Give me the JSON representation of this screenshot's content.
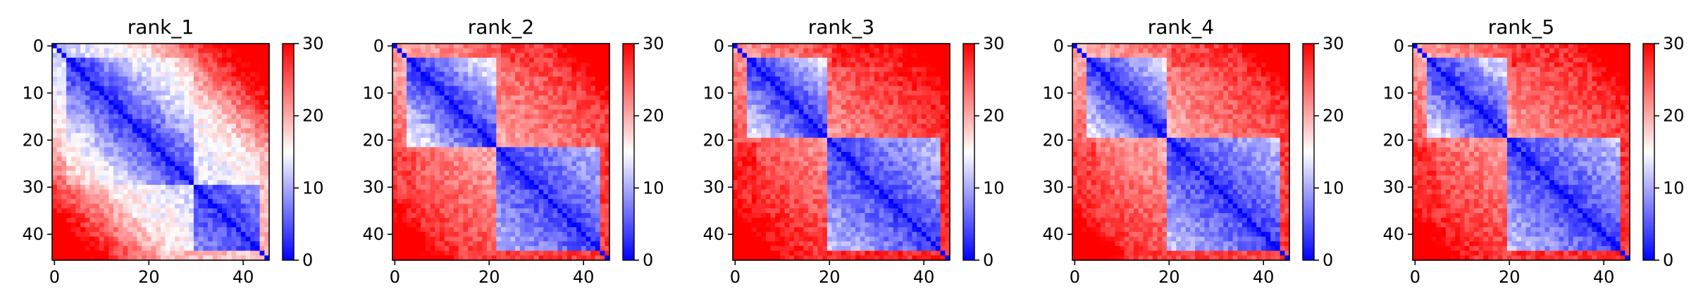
{
  "chart_data": [
    {
      "type": "heatmap",
      "title": "rank_1",
      "size": 46,
      "xticks": [
        0,
        20,
        40
      ],
      "yticks": [
        0,
        10,
        20,
        30,
        40
      ],
      "colorbar": {
        "min": 0,
        "max": 30,
        "ticks": [
          0,
          10,
          20,
          30
        ],
        "colors": [
          "#0000ff",
          "#ffffff",
          "#ff0000"
        ]
      },
      "domain_split": 30,
      "far_level": 0.55
    },
    {
      "type": "heatmap",
      "title": "rank_2",
      "size": 46,
      "xticks": [
        0,
        20,
        40
      ],
      "yticks": [
        0,
        10,
        20,
        30,
        40
      ],
      "colorbar": {
        "min": 0,
        "max": 30,
        "ticks": [
          0,
          10,
          20,
          30
        ],
        "colors": [
          "#0000ff",
          "#ffffff",
          "#ff0000"
        ]
      },
      "domain_split": 22,
      "far_level": 0.8
    },
    {
      "type": "heatmap",
      "title": "rank_3",
      "size": 46,
      "xticks": [
        0,
        20,
        40
      ],
      "yticks": [
        0,
        10,
        20,
        30,
        40
      ],
      "colorbar": {
        "min": 0,
        "max": 30,
        "ticks": [
          0,
          10,
          20,
          30
        ],
        "colors": [
          "#0000ff",
          "#ffffff",
          "#ff0000"
        ]
      },
      "domain_split": 20,
      "far_level": 0.85
    },
    {
      "type": "heatmap",
      "title": "rank_4",
      "size": 46,
      "xticks": [
        0,
        20,
        40
      ],
      "yticks": [
        0,
        10,
        20,
        30,
        40
      ],
      "colorbar": {
        "min": 0,
        "max": 30,
        "ticks": [
          0,
          10,
          20,
          30
        ],
        "colors": [
          "#0000ff",
          "#ffffff",
          "#ff0000"
        ]
      },
      "domain_split": 20,
      "far_level": 0.8
    },
    {
      "type": "heatmap",
      "title": "rank_5",
      "size": 46,
      "xticks": [
        0,
        20,
        40
      ],
      "yticks": [
        0,
        10,
        20,
        30,
        40
      ],
      "colorbar": {
        "min": 0,
        "max": 30,
        "ticks": [
          0,
          10,
          20,
          30
        ],
        "colors": [
          "#0000ff",
          "#ffffff",
          "#ff0000"
        ]
      },
      "domain_split": 20,
      "far_level": 0.82
    }
  ]
}
